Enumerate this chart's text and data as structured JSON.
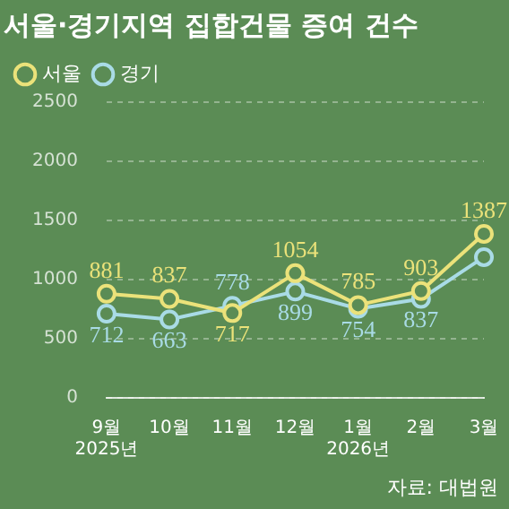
{
  "chart_data": {
    "type": "line",
    "title": "서울·경기지역 집합건물 증여 건수",
    "categories": [
      "9월\n2025년",
      "10월",
      "11월",
      "12월",
      "1월\n2026년",
      "2월",
      "3월"
    ],
    "series": [
      {
        "name": "서울",
        "color": "#ebe27a",
        "values": [
          881,
          837,
          717,
          1054,
          785,
          903,
          1387
        ],
        "value_labels": [
          "881",
          "837",
          "717",
          "1054",
          "785",
          "903",
          "1387"
        ]
      },
      {
        "name": "경기",
        "color": "#a9dbe6",
        "values": [
          712,
          663,
          778,
          899,
          754,
          837,
          1190
        ],
        "value_labels": [
          "712",
          "663",
          "778",
          "899",
          "754",
          "837",
          null
        ]
      }
    ],
    "ylim": [
      0,
      2500
    ],
    "yticks": [
      0,
      500,
      1000,
      1500,
      2000,
      2500
    ],
    "grid": "y",
    "legend": "top left",
    "marker": "circle",
    "line_style": "solid",
    "annotations": [
      "자료: 대법원"
    ]
  }
}
